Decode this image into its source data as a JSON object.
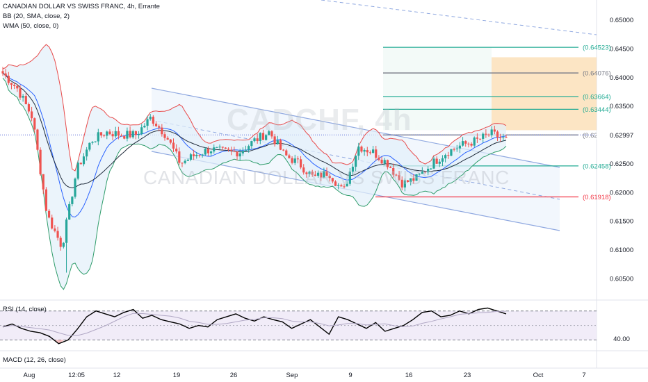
{
  "header": {
    "title": "CANADIAN DOLLAR VS SWISS FRANC, 4h, Errante",
    "bb_label": "BB (20, SMA, close, 2)",
    "wma_label": "WMA (50, close, 0)",
    "rsi_label": "RSI (14, close)",
    "macd_label": "MACD (12, 26, close)"
  },
  "watermark": {
    "symbol": "CADCHF, 4h",
    "name": "CANADIAN DOLLAR VS SWISS FRANC"
  },
  "colors": {
    "up": "#26a69a",
    "down": "#ef5350",
    "bb_upper": "#e84a4a",
    "bb_lower": "#2e9c6a",
    "bb_fill": "#e3f0fa",
    "wma": "#1e2a3a",
    "sma": "#2962ff",
    "channel": "#8fa8e0",
    "fib_green": "#22ab94",
    "fib_grey": "#787b86",
    "fib_red": "#f23645",
    "target_zone": "#fbdcb0",
    "rsi_line": "#000000",
    "rsi_band": "#ede7f6"
  },
  "chart_data": [
    {
      "type": "candlestick",
      "title": "CANADIAN DOLLAR VS SWISS FRANC, 4h, Errante",
      "ylim": [
        0.6005,
        0.6525
      ],
      "y_ticks": [
        "0.65000",
        "0.64500",
        "0.64000",
        "0.63500",
        "0.63000",
        "0.62500",
        "0.62000",
        "0.61500",
        "0.61000",
        "0.60500"
      ],
      "x_ticks": [
        "Aug",
        "12:05",
        "12",
        "19",
        "26",
        "Sep",
        "9",
        "16",
        "23",
        "Oct",
        "7"
      ],
      "current_price": 0.62997,
      "fib_levels": [
        {
          "value": 0.64523,
          "label": "(0.64523)",
          "color": "green"
        },
        {
          "value": 0.64076,
          "label": "(0.64076)",
          "color": "grey"
        },
        {
          "value": 0.63664,
          "label": "(0.63664)",
          "color": "green"
        },
        {
          "value": 0.63444,
          "label": "(0.63444)",
          "color": "green"
        },
        {
          "value": 0.62997,
          "label": "(0.62997)",
          "color": "grey"
        },
        {
          "value": 0.62458,
          "label": "(0.62458)",
          "color": "green"
        },
        {
          "value": 0.61918,
          "label": "(0.61918)",
          "color": "red"
        }
      ],
      "target_zone": {
        "from": 0.6308,
        "to": 0.6435
      },
      "price_path": [
        [
          0.6395,
          0.6407
        ],
        [
          0.6405,
          0.638
        ],
        [
          0.6375,
          0.633
        ],
        [
          0.626,
          0.616
        ],
        [
          0.608,
          0.6105
        ],
        [
          0.618,
          0.624
        ],
        [
          0.624,
          0.629
        ],
        [
          0.6295,
          0.6305
        ],
        [
          0.631,
          0.63
        ],
        [
          0.629,
          0.63
        ],
        [
          0.6365,
          0.633
        ],
        [
          0.632,
          0.63
        ],
        [
          0.629,
          0.625
        ],
        [
          0.6255,
          0.6265
        ],
        [
          0.6265,
          0.6275
        ],
        [
          0.628,
          0.627
        ],
        [
          0.626,
          0.627
        ],
        [
          0.6275,
          0.629
        ],
        [
          0.63,
          0.6305
        ],
        [
          0.63,
          0.6265
        ],
        [
          0.626,
          0.625
        ],
        [
          0.624,
          0.6225
        ],
        [
          0.624,
          0.6235
        ],
        [
          0.6215,
          0.62
        ],
        [
          0.6255,
          0.628
        ],
        [
          0.629,
          0.627
        ],
        [
          0.6255,
          0.625
        ],
        [
          0.623,
          0.6215
        ],
        [
          0.62,
          0.6225
        ],
        [
          0.624,
          0.625
        ],
        [
          0.626,
          0.627
        ],
        [
          0.6275,
          0.6282
        ],
        [
          0.628,
          0.629
        ],
        [
          0.63,
          0.6302
        ],
        [
          0.6298,
          0.629
        ]
      ]
    },
    {
      "type": "line",
      "title": "RSI (14, close)",
      "ylim": [
        20,
        85
      ],
      "y_ticks": [
        "40.00"
      ],
      "bands": {
        "upper": 70,
        "middle": 50,
        "lower": 30
      },
      "values": [
        48,
        52,
        46,
        42,
        40,
        35,
        25,
        30,
        45,
        62,
        70,
        66,
        62,
        68,
        72,
        60,
        64,
        58,
        55,
        52,
        46,
        50,
        48,
        58,
        62,
        66,
        60,
        56,
        62,
        58,
        55,
        46,
        52,
        58,
        48,
        38,
        62,
        58,
        52,
        46,
        54,
        42,
        46,
        50,
        58,
        68,
        70,
        62,
        64,
        70,
        66,
        72,
        74,
        70,
        66
      ]
    }
  ]
}
